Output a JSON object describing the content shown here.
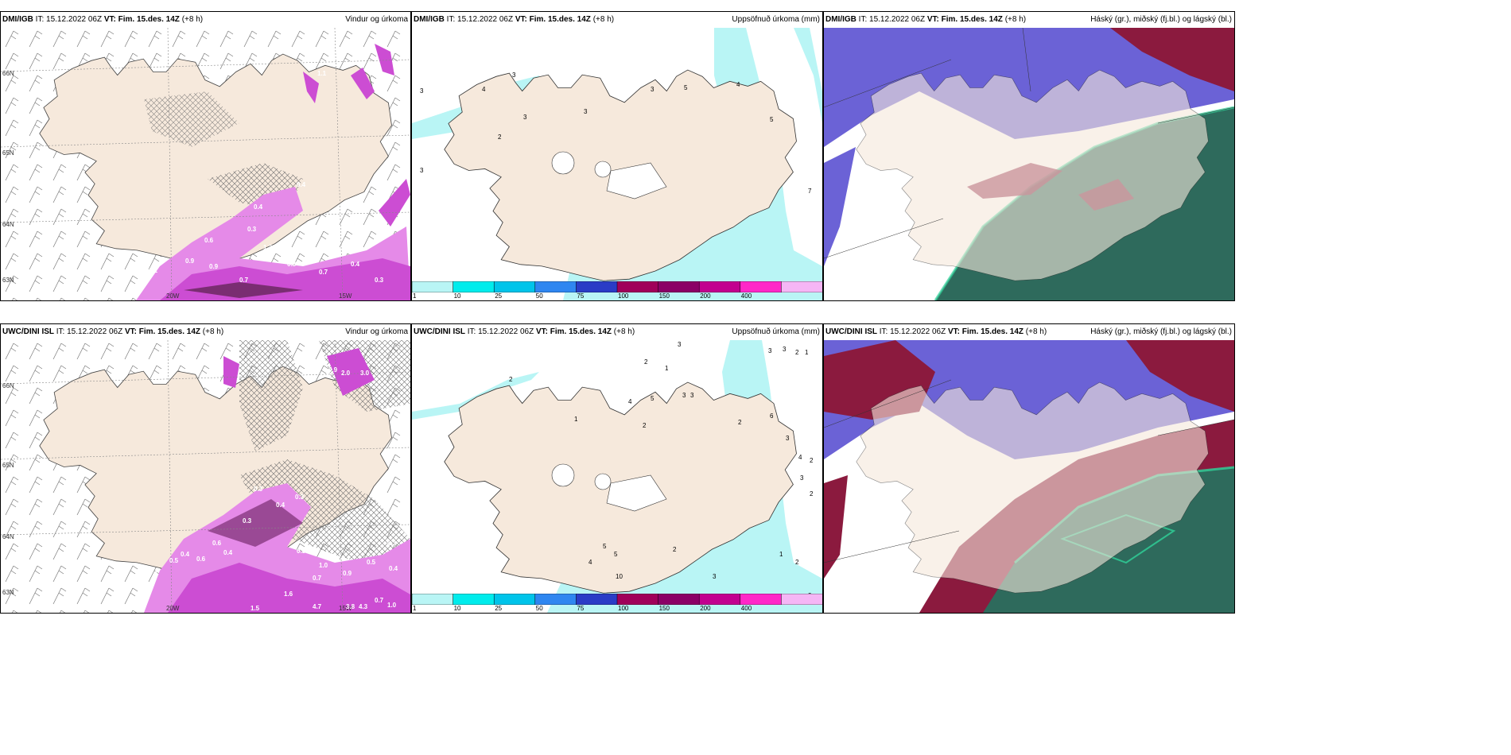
{
  "colors": {
    "land": "#f6e9dc",
    "sea": "#ffffff",
    "precip_light": "#e58ae8",
    "precip_mid": "#cc4dd3",
    "precip_dark": "#7a2d72",
    "accum": "#b9f5f5",
    "cloud_high": "#6b62d6",
    "cloud_mid": "#8b1a3e",
    "cloud_low": "#2e6a5c",
    "cloud_low_edge": "#2fd39a"
  },
  "legend": {
    "ticks": [
      "1",
      "10",
      "25",
      "50",
      "75",
      "100",
      "150",
      "200",
      "400"
    ],
    "colors": [
      "#b9f5f5",
      "#00ecec",
      "#00c4ea",
      "#2f86f0",
      "#2a3cc6",
      "#a0005a",
      "#8b0066",
      "#c2008f",
      "#ff28c8",
      "#f5b6f5"
    ]
  },
  "panels": [
    {
      "model": "DMI/IGB",
      "it_label": "IT:",
      "it_value": "15.12.2022 06Z",
      "vt_label": "VT:",
      "vt_value": "Fim. 15.des. 14Z",
      "lead": "(+8 h)",
      "product": "Vindur og úrkoma",
      "lat_labels": [
        "66N",
        "65N",
        "64N",
        "63N"
      ],
      "lon_labels": [
        "20W",
        "15W"
      ],
      "values": [
        "1.1",
        "0.4",
        "0.3",
        "0.6",
        "1.3",
        "0.9",
        "1.1",
        "0.9",
        "0.8",
        "0.7",
        "0.4",
        "0.3",
        "0.7",
        "0.4"
      ]
    },
    {
      "model": "DMI/IGB",
      "it_label": "IT:",
      "it_value": "15.12.2022 06Z",
      "vt_label": "VT:",
      "vt_value": "Fim. 15.des. 14Z",
      "lead": "(+8 h)",
      "product": "Uppsöfnuð úrkoma (mm)",
      "values": [
        "3",
        "3",
        "3",
        "4",
        "2",
        "3",
        "3",
        "5",
        "4",
        "5",
        "7",
        "3",
        "5"
      ]
    },
    {
      "model": "DMI/IGB",
      "it_label": "IT:",
      "it_value": "15.12.2022 06Z",
      "vt_label": "VT:",
      "vt_value": "Fim. 15.des. 14Z",
      "lead": "(+8 h)",
      "product": "Háský (gr.), miðský (fj.bl.) og lágský (bl.)"
    },
    {
      "model": "UWC/DINI ISL",
      "it_label": "IT:",
      "it_value": "15.12.2022 06Z",
      "vt_label": "VT:",
      "vt_value": "Fim. 15.des. 14Z",
      "lead": "(+8 h)",
      "product": "Vindur og úrkoma",
      "lat_labels": [
        "66N",
        "65N",
        "64N",
        "63N"
      ],
      "lon_labels": [
        "20W",
        "15W"
      ],
      "values": [
        "0.9",
        "2.0",
        "3.0",
        "0.3",
        "0.3",
        "0.4",
        "0.6",
        "0.3",
        "0.4",
        "0.5",
        "0.6",
        "0.4",
        "0.3",
        "0.4",
        "1.0",
        "0.7",
        "0.9",
        "1.6",
        "1.5",
        "4.7",
        "3.8",
        "4.3",
        "0.7",
        "1.0",
        "0.4",
        "0.3",
        "0.5"
      ]
    },
    {
      "model": "UWC/DINI ISL",
      "it_label": "IT:",
      "it_value": "15.12.2022 06Z",
      "vt_label": "VT:",
      "vt_value": "Fim. 15.des. 14Z",
      "lead": "(+8 h)",
      "product": "Uppsöfnuð úrkoma (mm)",
      "values": [
        "3",
        "2",
        "1",
        "3",
        "3",
        "2",
        "1",
        "2",
        "4",
        "5",
        "2",
        "3",
        "4",
        "5",
        "5",
        "10",
        "3",
        "3",
        "2",
        "2",
        "1",
        "2",
        "3",
        "6",
        "4",
        "3",
        "2",
        "1",
        "2",
        "3"
      ]
    },
    {
      "model": "UWC/DINI ISL",
      "it_label": "IT:",
      "it_value": "15.12.2022 06Z",
      "vt_label": "VT:",
      "vt_value": "Fim. 15.des. 14Z",
      "lead": "(+8 h)",
      "product": "Háský (gr.), miðský (fj.bl.) og lágský (bl.)"
    }
  ]
}
